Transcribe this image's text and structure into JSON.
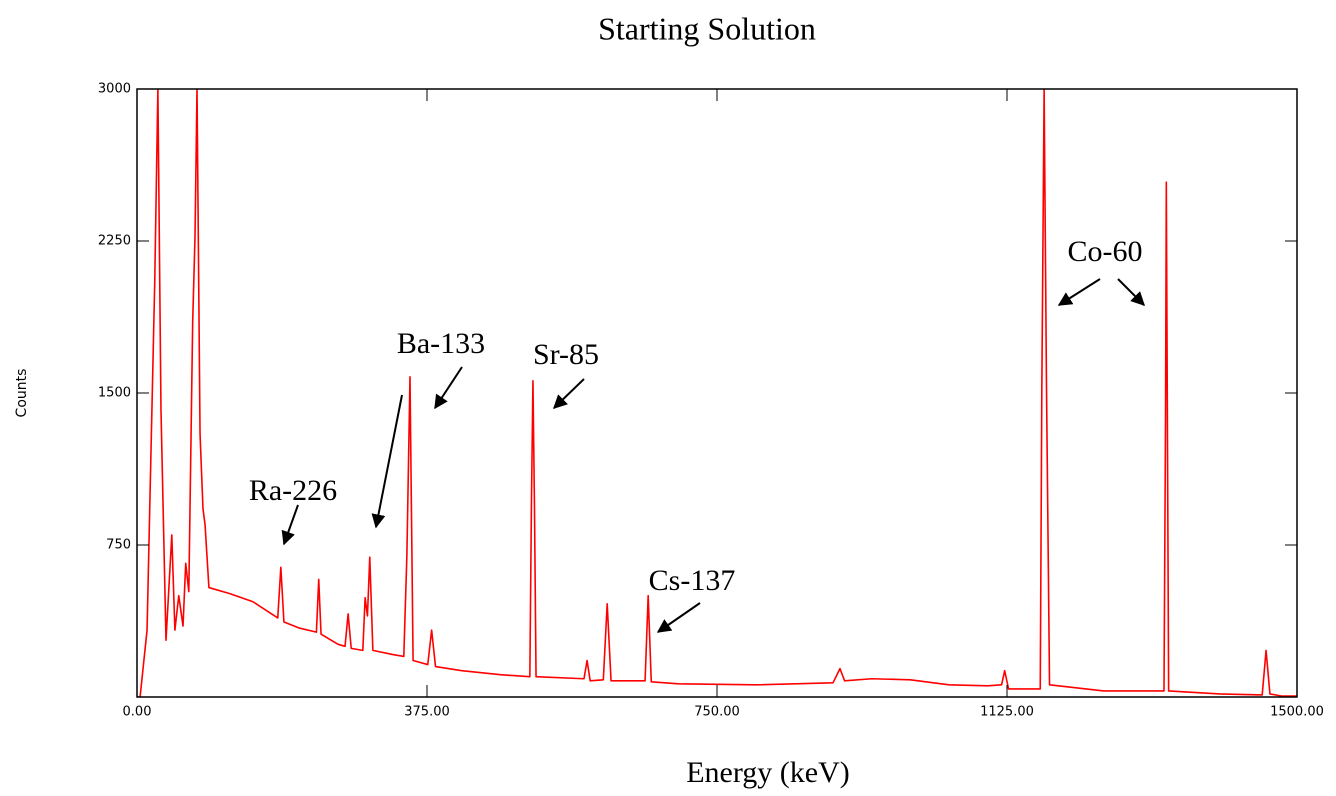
{
  "chart_data": {
    "type": "line",
    "title": "Starting Solution",
    "xlabel": "Energy (keV)",
    "ylabel": "Counts",
    "annotations": [
      "Ra-226",
      "Ba-133",
      "Sr-85",
      "Cs-137",
      "Co-60"
    ],
    "xlim": [
      0,
      1500
    ],
    "ylim": [
      0,
      3000
    ],
    "xticks": [
      {
        "value": 0,
        "label": "0.00"
      },
      {
        "value": 375,
        "label": "375.00"
      },
      {
        "value": 750,
        "label": "750.00"
      },
      {
        "value": 1125,
        "label": "1125.00"
      },
      {
        "value": 1500,
        "label": "1500.00"
      }
    ],
    "yticks": [
      750,
      1500,
      2250,
      3000
    ],
    "grid": false,
    "series": [
      {
        "name": "Counts",
        "color": "#ff0000",
        "x": [
          0,
          4,
          13,
          23,
          27,
          31,
          37.5,
          45,
          49,
          54,
          59.5,
          63,
          67,
          72,
          75,
          77.6,
          81.5,
          85.3,
          88,
          93,
          120,
          150,
          182,
          186,
          190,
          210,
          232,
          235,
          238,
          260,
          269,
          273,
          277,
          292,
          295,
          298,
          301,
          305,
          330,
          345,
          349,
          353,
          357,
          376,
          381,
          386,
          420,
          470,
          508,
          510,
          512,
          514,
          516,
          578,
          582,
          586,
          603,
          608,
          613,
          657,
          661,
          665,
          700,
          800,
          900,
          909,
          915,
          950,
          1000,
          1050,
          1100,
          1118,
          1122,
          1127,
          1168,
          1170,
          1173,
          1176,
          1180,
          1250,
          1328,
          1330,
          1331,
          1334,
          1400,
          1455,
          1460,
          1465,
          1480,
          1500
        ],
        "values": [
          0,
          0,
          330,
          2060,
          3000,
          1420,
          280,
          800,
          330,
          500,
          350,
          660,
          520,
          1850,
          2270,
          3000,
          1300,
          930,
          850,
          540,
          510,
          470,
          390,
          640,
          370,
          340,
          320,
          580,
          310,
          260,
          250,
          410,
          240,
          230,
          490,
          400,
          690,
          230,
          210,
          200,
          700,
          1580,
          180,
          160,
          330,
          150,
          130,
          110,
          100,
          940,
          1560,
          930,
          100,
          90,
          180,
          80,
          85,
          460,
          80,
          80,
          500,
          75,
          65,
          60,
          70,
          140,
          80,
          90,
          85,
          60,
          55,
          60,
          130,
          40,
          40,
          1500,
          3000,
          1560,
          60,
          30,
          30,
          1370,
          2540,
          30,
          15,
          10,
          230,
          15,
          5,
          5
        ]
      }
    ]
  }
}
